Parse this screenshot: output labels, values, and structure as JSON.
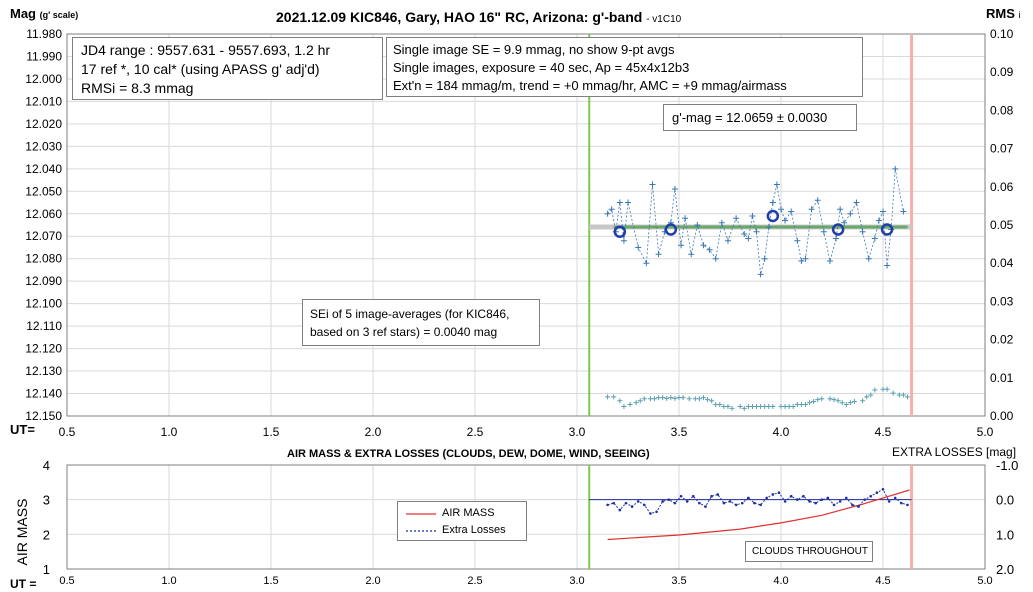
{
  "top_chart": {
    "title": "2021.12.09 KIC846, Gary, HAO 16\" RC, Arizona: g'-band",
    "version": "- v1C10",
    "y_axis_label": "Mag",
    "y_axis_label_sub": "(g' scale)",
    "y2_axis_label": "RMS",
    "y2_axis_label_sub": "i",
    "x_axis_label": "UT=",
    "info_box_1": {
      "line1": "JD4 range : 9557.631 - 9557.693,  1.2  hr",
      "line2": "17 ref *, 10 cal* (using APASS g' adj'd)",
      "line3": "RMSi = 8.3 mmag"
    },
    "info_box_2": {
      "line1": "Single image SE = 9.9 mmag, no show  9-pt avgs",
      "line2": "Single images, exposure = 40 sec, Ap = 45x4x12b3",
      "line3": "Ext'n = 184 mmag/m, trend = +0 mmag/hr, AMC = +9 mmag/airmass"
    },
    "gmag_box": "g'-mag = 12.0659 ± 0.0030",
    "sei_box": {
      "line1": "SEi of 5 image-averages (for KIC846,",
      "line2": "based on 3 ref stars) = 0.0040 mag"
    }
  },
  "bottom_chart": {
    "title": "AIR MASS & EXTRA LOSSES (CLOUDS, DEW, DOME, WIND, SEEING)",
    "y_axis_label": "AIR MASS",
    "y2_axis_label": "EXTRA LOSSES [mag]",
    "x_axis_label": "UT =",
    "legend": {
      "air_mass": "AIR MASS",
      "extra_losses": "Extra Losses"
    },
    "note": "CLOUDS THROUGHOUT"
  },
  "chart_data": [
    {
      "type": "scatter",
      "title": "2021.12.09 KIC846, Gary, HAO 16\" RC, Arizona: g'-band",
      "xlabel": "UT=",
      "ylabel": "Mag (g' scale)",
      "y2label": "RMS i",
      "xlim": [
        0.5,
        5.0
      ],
      "ylim": [
        11.98,
        12.15
      ],
      "y_inverted": true,
      "y2lim": [
        0.0,
        0.1
      ],
      "x_ticks": [
        "0.5",
        "1.0",
        "1.5",
        "2.0",
        "2.5",
        "3.0",
        "3.5",
        "4.0",
        "4.5",
        "5.0"
      ],
      "y_ticks": [
        "11.980",
        "11.990",
        "12.000",
        "12.010",
        "12.020",
        "12.030",
        "12.040",
        "12.050",
        "12.060",
        "12.070",
        "12.080",
        "12.090",
        "12.100",
        "12.110",
        "12.120",
        "12.130",
        "12.140",
        "12.150"
      ],
      "y2_ticks": [
        "0.00",
        "0.01",
        "0.02",
        "0.03",
        "0.04",
        "0.05",
        "0.06",
        "0.07",
        "0.08",
        "0.09",
        "0.10"
      ],
      "grid": true,
      "colors": {
        "single": "#3a78b5",
        "avg": "#1f3fa8",
        "rms": "#5a9fb0",
        "mean_line": "#6aa86a",
        "mean_line_halo": "#c8c8c8",
        "start_line": "#7dc850",
        "end_line": "#f4b0b0"
      },
      "start_line_x": 3.06,
      "end_line_x": 4.64,
      "mean_mag": 12.0659,
      "mean_line_x": [
        3.06,
        4.64
      ],
      "series": [
        {
          "name": "single",
          "x": [
            3.15,
            3.17,
            3.19,
            3.21,
            3.23,
            3.25,
            3.3,
            3.34,
            3.37,
            3.4,
            3.43,
            3.46,
            3.48,
            3.51,
            3.53,
            3.56,
            3.59,
            3.62,
            3.65,
            3.68,
            3.71,
            3.74,
            3.78,
            3.82,
            3.84,
            3.86,
            3.88,
            3.9,
            3.92,
            3.94,
            3.96,
            3.98,
            4.0,
            4.02,
            4.05,
            4.08,
            4.1,
            4.12,
            4.15,
            4.18,
            4.21,
            4.24,
            4.27,
            4.29,
            4.31,
            4.34,
            4.37,
            4.4,
            4.43,
            4.46,
            4.48,
            4.5,
            4.52,
            4.54,
            4.56,
            4.6
          ],
          "y": [
            12.06,
            12.058,
            12.068,
            12.055,
            12.072,
            12.055,
            12.075,
            12.082,
            12.047,
            12.078,
            12.068,
            12.064,
            12.049,
            12.074,
            12.062,
            12.078,
            12.065,
            12.074,
            12.076,
            12.08,
            12.064,
            12.072,
            12.062,
            12.069,
            12.071,
            12.061,
            12.068,
            12.087,
            12.08,
            12.066,
            12.055,
            12.047,
            12.058,
            12.063,
            12.059,
            12.072,
            12.081,
            12.08,
            12.058,
            12.054,
            12.068,
            12.081,
            12.071,
            12.058,
            12.064,
            12.06,
            12.055,
            12.068,
            12.08,
            12.071,
            12.063,
            12.059,
            12.083,
            12.067,
            12.04,
            12.059
          ]
        },
        {
          "name": "avg",
          "x": [
            3.21,
            3.46,
            3.96,
            4.28,
            4.52
          ],
          "y": [
            12.068,
            12.067,
            12.061,
            12.067,
            12.067
          ]
        },
        {
          "name": "rms",
          "x": [
            3.15,
            3.18,
            3.21,
            3.23,
            3.26,
            3.29,
            3.31,
            3.33,
            3.36,
            3.38,
            3.4,
            3.42,
            3.44,
            3.46,
            3.48,
            3.5,
            3.52,
            3.55,
            3.58,
            3.6,
            3.62,
            3.64,
            3.66,
            3.68,
            3.7,
            3.72,
            3.74,
            3.76,
            3.8,
            3.82,
            3.84,
            3.86,
            3.88,
            3.9,
            3.92,
            3.94,
            3.96,
            4.0,
            4.02,
            4.04,
            4.06,
            4.08,
            4.1,
            4.12,
            4.14,
            4.16,
            4.18,
            4.2,
            4.24,
            4.26,
            4.28,
            4.3,
            4.32,
            4.34,
            4.36,
            4.4,
            4.42,
            4.44,
            4.46,
            4.5,
            4.52,
            4.55,
            4.58,
            4.6,
            4.62
          ],
          "y": [
            0.005,
            0.005,
            0.004,
            0.0025,
            0.003,
            0.0035,
            0.004,
            0.0045,
            0.0045,
            0.0045,
            0.0048,
            0.0048,
            0.0046,
            0.0048,
            0.0046,
            0.0048,
            0.0048,
            0.0045,
            0.0045,
            0.0045,
            0.0048,
            0.0043,
            0.004,
            0.003,
            0.003,
            0.0025,
            0.0025,
            0.002,
            0.0025,
            0.002,
            0.0025,
            0.0025,
            0.0025,
            0.0025,
            0.0025,
            0.0025,
            0.0025,
            0.0025,
            0.0025,
            0.0025,
            0.0025,
            0.003,
            0.003,
            0.003,
            0.0035,
            0.0038,
            0.0043,
            0.0045,
            0.0045,
            0.0043,
            0.004,
            0.0035,
            0.003,
            0.0035,
            0.0038,
            0.004,
            0.005,
            0.0055,
            0.0068,
            0.007,
            0.007,
            0.006,
            0.0055,
            0.0055,
            0.005
          ]
        }
      ]
    },
    {
      "type": "line",
      "title": "AIR MASS & EXTRA LOSSES (CLOUDS, DEW, DOME, WIND, SEEING)",
      "xlabel": "UT =",
      "ylabel": "AIR MASS",
      "y2label": "EXTRA LOSSES [mag]",
      "xlim": [
        0.5,
        5.0
      ],
      "ylim": [
        1,
        4
      ],
      "y2lim": [
        -1.0,
        2.0
      ],
      "y2_inverted": true,
      "x_ticks": [
        "0.5",
        "1.0",
        "1.5",
        "2.0",
        "2.5",
        "3.0",
        "3.5",
        "4.0",
        "4.5",
        "5.0"
      ],
      "y_ticks": [
        "1",
        "2",
        "3",
        "4"
      ],
      "y2_ticks": [
        "-1.0",
        "0.0",
        "1.0",
        "2.0"
      ],
      "grid": true,
      "colors": {
        "air_mass": "#e03030",
        "extra_losses": "#1f2f9f",
        "zero_line": "#1f2f9f",
        "start_line": "#7dc850",
        "end_line": "#f4b0b0"
      },
      "zero_line_x": [
        3.06,
        4.64
      ],
      "start_line_x": 3.06,
      "end_line_x": 4.64,
      "series": [
        {
          "name": "AIR MASS",
          "x": [
            3.15,
            3.5,
            3.8,
            4.0,
            4.2,
            4.4,
            4.63
          ],
          "y": [
            1.85,
            1.98,
            2.15,
            2.33,
            2.55,
            2.87,
            3.28
          ]
        },
        {
          "name": "Extra Losses",
          "x": [
            3.15,
            3.18,
            3.21,
            3.24,
            3.27,
            3.3,
            3.33,
            3.36,
            3.39,
            3.42,
            3.45,
            3.48,
            3.51,
            3.54,
            3.57,
            3.6,
            3.63,
            3.66,
            3.69,
            3.72,
            3.75,
            3.78,
            3.81,
            3.84,
            3.87,
            3.9,
            3.93,
            3.96,
            3.99,
            4.02,
            4.05,
            4.08,
            4.11,
            4.14,
            4.17,
            4.2,
            4.23,
            4.26,
            4.29,
            4.32,
            4.35,
            4.38,
            4.41,
            4.44,
            4.47,
            4.5,
            4.53,
            4.56,
            4.59,
            4.62
          ],
          "y": [
            0.15,
            0.1,
            0.3,
            0.1,
            0.2,
            0.05,
            0.15,
            0.4,
            0.35,
            0.05,
            0.0,
            0.1,
            -0.1,
            0.05,
            -0.1,
            0.1,
            0.2,
            -0.1,
            -0.15,
            0.1,
            0.05,
            0.15,
            0.1,
            -0.05,
            0.1,
            0.15,
            -0.05,
            -0.15,
            -0.2,
            0.05,
            -0.1,
            0.0,
            -0.1,
            0.05,
            0.1,
            0.0,
            -0.05,
            0.15,
            0.05,
            -0.05,
            0.15,
            0.2,
            0.0,
            -0.1,
            -0.2,
            -0.3,
            0.05,
            -0.05,
            0.1,
            0.15
          ]
        }
      ]
    }
  ]
}
